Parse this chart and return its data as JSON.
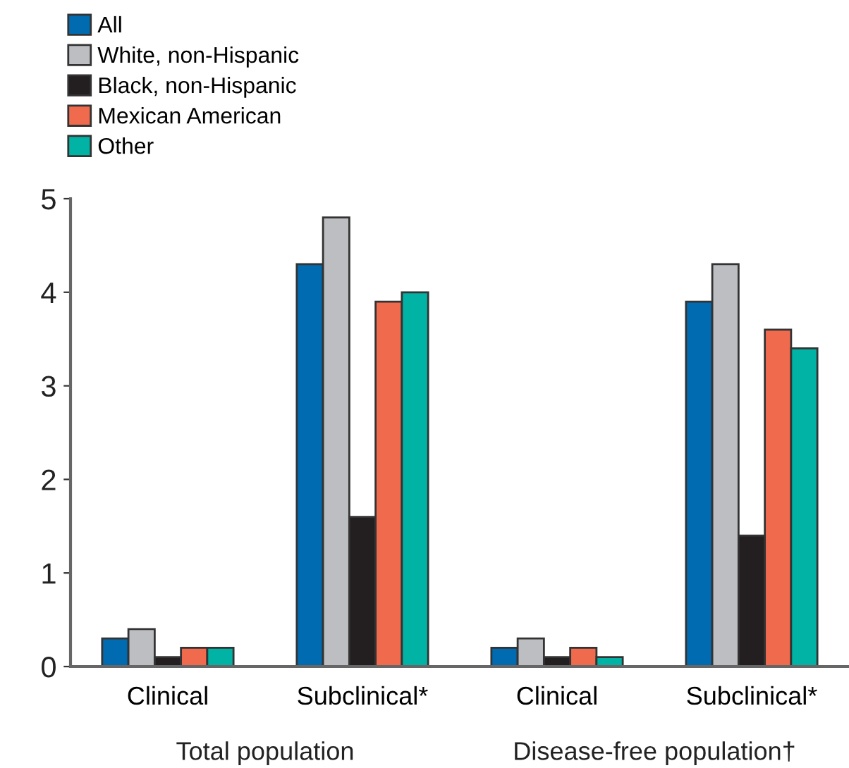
{
  "chart_data": {
    "type": "bar",
    "categories": [
      "Clinical",
      "Subclinical*",
      "Clinical",
      "Subclinical*"
    ],
    "series": [
      {
        "name": "All",
        "color": "#006bb0",
        "values": [
          0.3,
          4.3,
          0.2,
          3.9
        ]
      },
      {
        "name": "White, non-Hispanic",
        "color": "#bcbec2",
        "values": [
          0.4,
          4.8,
          0.3,
          4.3
        ]
      },
      {
        "name": "Black, non-Hispanic",
        "color": "#231f20",
        "values": [
          0.1,
          1.6,
          0.1,
          1.4
        ]
      },
      {
        "name": "Mexican American",
        "color": "#f06a4e",
        "values": [
          0.2,
          3.9,
          0.2,
          3.6
        ]
      },
      {
        "name": "Other",
        "color": "#00b3a5",
        "values": [
          0.2,
          4.0,
          0.1,
          3.4
        ]
      }
    ],
    "ylim": [
      0,
      5
    ],
    "yticks": [
      0,
      1,
      2,
      3,
      4,
      5
    ],
    "grid": false,
    "legend": "top left",
    "annotations": [
      "Total population",
      "Disease-free population†"
    ]
  }
}
